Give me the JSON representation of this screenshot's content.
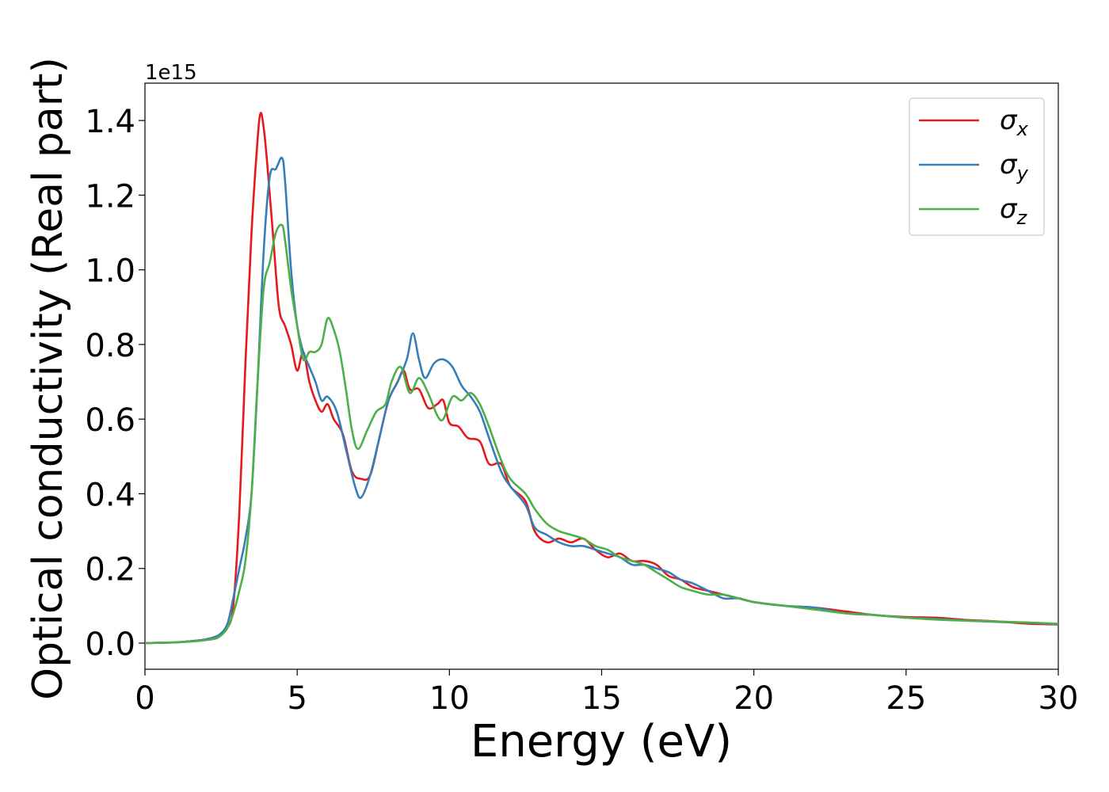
{
  "chart_data": {
    "type": "line",
    "xlabel": "Energy (eV)",
    "ylabel": "Optical conductivity (Real part)",
    "y_multiplier_label": "1e15",
    "y_unit_multiplier": 1000000000000000.0,
    "xlim": [
      0,
      30
    ],
    "ylim": [
      -0.07,
      1.5
    ],
    "x_ticks": [
      0,
      5,
      10,
      15,
      20,
      25,
      30
    ],
    "x_tick_labels": [
      "0",
      "5",
      "10",
      "15",
      "20",
      "25",
      "30"
    ],
    "y_ticks": [
      0.0,
      0.2,
      0.4,
      0.6,
      0.8,
      1.0,
      1.2,
      1.4
    ],
    "y_tick_labels": [
      "0.0",
      "0.2",
      "0.4",
      "0.6",
      "0.8",
      "1.0",
      "1.2",
      "1.4"
    ],
    "grid": false,
    "legend_position": "top-right",
    "series": [
      {
        "name": "σx",
        "legend_base": "σ",
        "legend_sub": "x",
        "color": "#e41a1c",
        "points": [
          [
            0,
            0
          ],
          [
            1,
            0.002
          ],
          [
            1.5,
            0.005
          ],
          [
            2,
            0.01
          ],
          [
            2.4,
            0.02
          ],
          [
            2.7,
            0.04
          ],
          [
            2.9,
            0.1
          ],
          [
            3.1,
            0.35
          ],
          [
            3.3,
            0.75
          ],
          [
            3.5,
            1.1
          ],
          [
            3.7,
            1.35
          ],
          [
            3.8,
            1.42
          ],
          [
            3.9,
            1.38
          ],
          [
            4.0,
            1.3
          ],
          [
            4.2,
            1.1
          ],
          [
            4.4,
            0.9
          ],
          [
            4.6,
            0.85
          ],
          [
            4.8,
            0.8
          ],
          [
            5.0,
            0.73
          ],
          [
            5.2,
            0.78
          ],
          [
            5.4,
            0.7
          ],
          [
            5.6,
            0.65
          ],
          [
            5.8,
            0.62
          ],
          [
            6.0,
            0.64
          ],
          [
            6.2,
            0.6
          ],
          [
            6.5,
            0.56
          ],
          [
            6.8,
            0.46
          ],
          [
            7.1,
            0.44
          ],
          [
            7.4,
            0.45
          ],
          [
            7.7,
            0.55
          ],
          [
            8.0,
            0.65
          ],
          [
            8.3,
            0.7
          ],
          [
            8.5,
            0.73
          ],
          [
            8.7,
            0.68
          ],
          [
            9.0,
            0.68
          ],
          [
            9.3,
            0.63
          ],
          [
            9.6,
            0.64
          ],
          [
            9.8,
            0.65
          ],
          [
            10.0,
            0.59
          ],
          [
            10.3,
            0.58
          ],
          [
            10.6,
            0.55
          ],
          [
            11.0,
            0.54
          ],
          [
            11.3,
            0.48
          ],
          [
            11.7,
            0.48
          ],
          [
            12.0,
            0.42
          ],
          [
            12.5,
            0.38
          ],
          [
            12.8,
            0.3
          ],
          [
            13.2,
            0.27
          ],
          [
            13.6,
            0.28
          ],
          [
            14.0,
            0.27
          ],
          [
            14.4,
            0.28
          ],
          [
            14.8,
            0.25
          ],
          [
            15.2,
            0.23
          ],
          [
            15.6,
            0.24
          ],
          [
            16.0,
            0.22
          ],
          [
            16.4,
            0.22
          ],
          [
            16.8,
            0.21
          ],
          [
            17.2,
            0.18
          ],
          [
            17.6,
            0.17
          ],
          [
            18.0,
            0.15
          ],
          [
            18.5,
            0.14
          ],
          [
            19.0,
            0.13
          ],
          [
            19.5,
            0.12
          ],
          [
            20.0,
            0.11
          ],
          [
            21,
            0.1
          ],
          [
            22,
            0.095
          ],
          [
            23,
            0.085
          ],
          [
            24,
            0.075
          ],
          [
            25,
            0.07
          ],
          [
            26,
            0.068
          ],
          [
            27,
            0.062
          ],
          [
            28,
            0.058
          ],
          [
            29,
            0.052
          ],
          [
            30,
            0.05
          ]
        ]
      },
      {
        "name": "σy",
        "legend_base": "σ",
        "legend_sub": "y",
        "color": "#377eb8",
        "points": [
          [
            0,
            0
          ],
          [
            1,
            0.002
          ],
          [
            1.5,
            0.005
          ],
          [
            2,
            0.01
          ],
          [
            2.4,
            0.02
          ],
          [
            2.7,
            0.05
          ],
          [
            2.9,
            0.12
          ],
          [
            3.1,
            0.2
          ],
          [
            3.3,
            0.28
          ],
          [
            3.5,
            0.4
          ],
          [
            3.7,
            0.7
          ],
          [
            3.9,
            1.05
          ],
          [
            4.1,
            1.25
          ],
          [
            4.3,
            1.27
          ],
          [
            4.5,
            1.3
          ],
          [
            4.6,
            1.24
          ],
          [
            4.8,
            1.0
          ],
          [
            5.0,
            0.85
          ],
          [
            5.2,
            0.78
          ],
          [
            5.4,
            0.74
          ],
          [
            5.6,
            0.7
          ],
          [
            5.8,
            0.65
          ],
          [
            6.0,
            0.66
          ],
          [
            6.3,
            0.62
          ],
          [
            6.6,
            0.52
          ],
          [
            6.9,
            0.42
          ],
          [
            7.1,
            0.39
          ],
          [
            7.4,
            0.45
          ],
          [
            7.7,
            0.55
          ],
          [
            8.0,
            0.65
          ],
          [
            8.3,
            0.7
          ],
          [
            8.6,
            0.76
          ],
          [
            8.8,
            0.83
          ],
          [
            9.0,
            0.76
          ],
          [
            9.2,
            0.71
          ],
          [
            9.5,
            0.75
          ],
          [
            9.8,
            0.76
          ],
          [
            10.1,
            0.74
          ],
          [
            10.4,
            0.69
          ],
          [
            10.7,
            0.66
          ],
          [
            11.0,
            0.62
          ],
          [
            11.3,
            0.55
          ],
          [
            11.7,
            0.46
          ],
          [
            12.0,
            0.42
          ],
          [
            12.5,
            0.37
          ],
          [
            12.8,
            0.31
          ],
          [
            13.2,
            0.29
          ],
          [
            13.6,
            0.27
          ],
          [
            14.0,
            0.26
          ],
          [
            14.4,
            0.26
          ],
          [
            14.8,
            0.25
          ],
          [
            15.2,
            0.24
          ],
          [
            15.6,
            0.23
          ],
          [
            16.0,
            0.21
          ],
          [
            16.4,
            0.21
          ],
          [
            16.8,
            0.2
          ],
          [
            17.2,
            0.19
          ],
          [
            17.6,
            0.17
          ],
          [
            18.0,
            0.16
          ],
          [
            18.5,
            0.14
          ],
          [
            19.0,
            0.12
          ],
          [
            19.5,
            0.12
          ],
          [
            20.0,
            0.11
          ],
          [
            21,
            0.1
          ],
          [
            22,
            0.095
          ],
          [
            23,
            0.08
          ],
          [
            24,
            0.075
          ],
          [
            25,
            0.068
          ],
          [
            26,
            0.065
          ],
          [
            27,
            0.06
          ],
          [
            28,
            0.057
          ],
          [
            29,
            0.055
          ],
          [
            30,
            0.05
          ]
        ]
      },
      {
        "name": "σz",
        "legend_base": "σ",
        "legend_sub": "z",
        "color": "#4daf4a",
        "points": [
          [
            0,
            0
          ],
          [
            1,
            0.002
          ],
          [
            1.5,
            0.004
          ],
          [
            2,
            0.008
          ],
          [
            2.4,
            0.015
          ],
          [
            2.7,
            0.04
          ],
          [
            2.9,
            0.08
          ],
          [
            3.1,
            0.14
          ],
          [
            3.3,
            0.22
          ],
          [
            3.5,
            0.4
          ],
          [
            3.7,
            0.7
          ],
          [
            3.9,
            0.95
          ],
          [
            4.1,
            1.02
          ],
          [
            4.3,
            1.1
          ],
          [
            4.5,
            1.12
          ],
          [
            4.6,
            1.08
          ],
          [
            4.8,
            0.95
          ],
          [
            5.0,
            0.85
          ],
          [
            5.2,
            0.76
          ],
          [
            5.4,
            0.78
          ],
          [
            5.6,
            0.78
          ],
          [
            5.8,
            0.8
          ],
          [
            6.0,
            0.87
          ],
          [
            6.2,
            0.84
          ],
          [
            6.4,
            0.78
          ],
          [
            6.6,
            0.68
          ],
          [
            6.8,
            0.57
          ],
          [
            7.0,
            0.52
          ],
          [
            7.3,
            0.57
          ],
          [
            7.6,
            0.62
          ],
          [
            7.9,
            0.64
          ],
          [
            8.1,
            0.7
          ],
          [
            8.4,
            0.74
          ],
          [
            8.7,
            0.67
          ],
          [
            9.0,
            0.71
          ],
          [
            9.3,
            0.67
          ],
          [
            9.6,
            0.61
          ],
          [
            9.8,
            0.6
          ],
          [
            10.1,
            0.66
          ],
          [
            10.4,
            0.65
          ],
          [
            10.7,
            0.67
          ],
          [
            11.0,
            0.64
          ],
          [
            11.3,
            0.58
          ],
          [
            11.7,
            0.49
          ],
          [
            12.0,
            0.44
          ],
          [
            12.5,
            0.4
          ],
          [
            12.8,
            0.36
          ],
          [
            13.2,
            0.32
          ],
          [
            13.6,
            0.3
          ],
          [
            14.0,
            0.29
          ],
          [
            14.4,
            0.28
          ],
          [
            14.8,
            0.26
          ],
          [
            15.2,
            0.25
          ],
          [
            15.6,
            0.23
          ],
          [
            16.0,
            0.22
          ],
          [
            16.4,
            0.21
          ],
          [
            16.8,
            0.19
          ],
          [
            17.2,
            0.17
          ],
          [
            17.6,
            0.15
          ],
          [
            18.0,
            0.14
          ],
          [
            18.5,
            0.13
          ],
          [
            19.0,
            0.13
          ],
          [
            19.5,
            0.12
          ],
          [
            20.0,
            0.11
          ],
          [
            21,
            0.1
          ],
          [
            22,
            0.09
          ],
          [
            23,
            0.08
          ],
          [
            24,
            0.075
          ],
          [
            25,
            0.068
          ],
          [
            26,
            0.063
          ],
          [
            27,
            0.06
          ],
          [
            28,
            0.058
          ],
          [
            29,
            0.055
          ],
          [
            30,
            0.052
          ]
        ]
      }
    ]
  }
}
